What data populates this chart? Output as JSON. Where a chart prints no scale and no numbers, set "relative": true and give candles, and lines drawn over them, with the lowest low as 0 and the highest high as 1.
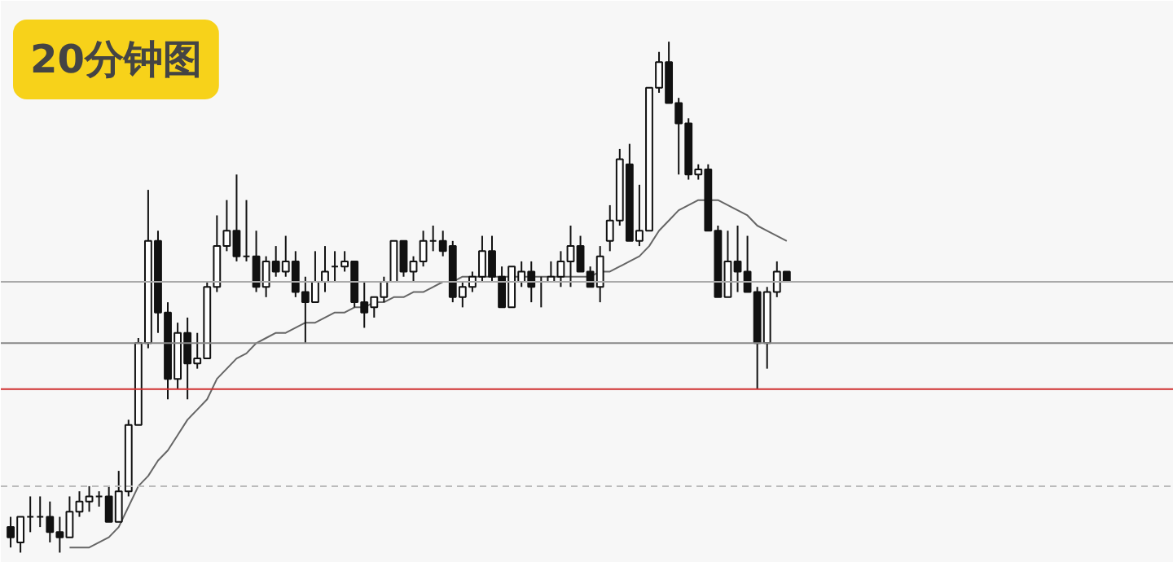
{
  "chart_data": {
    "type": "candlestick",
    "title": "20分钟图",
    "relative": true,
    "tick_labels": false,
    "grid": false,
    "categories": [
      null,
      null,
      null,
      null,
      null,
      null,
      null,
      null,
      null,
      null,
      null,
      null,
      null,
      null,
      null,
      null,
      null,
      null,
      null,
      null,
      null,
      null,
      null,
      null,
      null,
      null,
      null,
      null,
      null,
      null,
      null,
      null,
      null,
      null,
      null,
      null,
      null,
      null,
      null,
      null,
      null,
      null,
      null,
      null,
      null,
      null,
      null,
      null,
      null,
      null,
      null,
      null,
      null,
      null,
      null,
      null,
      null,
      null,
      null,
      null,
      null,
      null,
      null,
      null,
      null,
      null,
      null,
      null,
      null,
      null,
      null,
      null,
      null,
      null,
      null,
      null,
      null,
      null,
      null,
      null
    ],
    "ohlc": [
      [
        0.05,
        0.07,
        0.01,
        0.03
      ],
      [
        0.02,
        0.07,
        0,
        0.07
      ],
      [
        0.07,
        0.11,
        0.04,
        0.07
      ],
      [
        0.07,
        0.11,
        0.05,
        0.07
      ],
      [
        0.07,
        0.1,
        0.02,
        0.04
      ],
      [
        0.04,
        0.07,
        0,
        0.03
      ],
      [
        0.03,
        0.11,
        0.03,
        0.08
      ],
      [
        0.08,
        0.12,
        0.07,
        0.1
      ],
      [
        0.1,
        0.13,
        0.08,
        0.11
      ],
      [
        0.11,
        0.12,
        0.09,
        0.11
      ],
      [
        0.11,
        0.13,
        0.06,
        0.06
      ],
      [
        0.06,
        0.16,
        0.06,
        0.12
      ],
      [
        0.12,
        0.26,
        0.11,
        0.25
      ],
      [
        0.25,
        0.42,
        0.25,
        0.41
      ],
      [
        0.41,
        0.71,
        0.4,
        0.61
      ],
      [
        0.61,
        0.63,
        0.43,
        0.47
      ],
      [
        0.47,
        0.49,
        0.3,
        0.34
      ],
      [
        0.34,
        0.45,
        0.32,
        0.43
      ],
      [
        0.43,
        0.46,
        0.3,
        0.37
      ],
      [
        0.37,
        0.43,
        0.36,
        0.38
      ],
      [
        0.38,
        0.53,
        0.38,
        0.52
      ],
      [
        0.52,
        0.66,
        0.51,
        0.6
      ],
      [
        0.6,
        0.69,
        0.59,
        0.63
      ],
      [
        0.63,
        0.74,
        0.57,
        0.58
      ],
      [
        0.58,
        0.69,
        0.57,
        0.58
      ],
      [
        0.58,
        0.63,
        0.51,
        0.52
      ],
      [
        0.52,
        0.58,
        0.5,
        0.57
      ],
      [
        0.57,
        0.6,
        0.54,
        0.55
      ],
      [
        0.55,
        0.62,
        0.54,
        0.57
      ],
      [
        0.57,
        0.59,
        0.5,
        0.51
      ],
      [
        0.51,
        0.54,
        0.41,
        0.49
      ],
      [
        0.49,
        0.59,
        0.49,
        0.53
      ],
      [
        0.53,
        0.6,
        0.51,
        0.55
      ],
      [
        0.56,
        0.59,
        0.53,
        0.56
      ],
      [
        0.56,
        0.59,
        0.55,
        0.57
      ],
      [
        0.57,
        0.57,
        0.48,
        0.49
      ],
      [
        0.49,
        0.53,
        0.44,
        0.47
      ],
      [
        0.48,
        0.5,
        0.46,
        0.5
      ],
      [
        0.5,
        0.54,
        0.49,
        0.53
      ],
      [
        0.53,
        0.61,
        0.53,
        0.61
      ],
      [
        0.61,
        0.61,
        0.54,
        0.55
      ],
      [
        0.55,
        0.58,
        0.53,
        0.57
      ],
      [
        0.57,
        0.63,
        0.56,
        0.61
      ],
      [
        0.61,
        0.64,
        0.59,
        0.61
      ],
      [
        0.61,
        0.63,
        0.58,
        0.59
      ],
      [
        0.6,
        0.61,
        0.49,
        0.5
      ],
      [
        0.5,
        0.53,
        0.48,
        0.52
      ],
      [
        0.52,
        0.55,
        0.51,
        0.54
      ],
      [
        0.54,
        0.62,
        0.53,
        0.59
      ],
      [
        0.59,
        0.62,
        0.53,
        0.54
      ],
      [
        0.54,
        0.56,
        0.48,
        0.48
      ],
      [
        0.48,
        0.56,
        0.48,
        0.56
      ],
      [
        0.53,
        0.57,
        0.52,
        0.55
      ],
      [
        0.55,
        0.57,
        0.49,
        0.52
      ],
      [
        0.53,
        0.54,
        0.48,
        0.53
      ],
      [
        0.53,
        0.57,
        0.53,
        0.54
      ],
      [
        0.54,
        0.59,
        0.52,
        0.57
      ],
      [
        0.57,
        0.64,
        0.52,
        0.6
      ],
      [
        0.6,
        0.62,
        0.55,
        0.55
      ],
      [
        0.55,
        0.56,
        0.52,
        0.52
      ],
      [
        0.52,
        0.6,
        0.49,
        0.58
      ],
      [
        0.61,
        0.68,
        0.59,
        0.65
      ],
      [
        0.65,
        0.79,
        0.64,
        0.77
      ],
      [
        0.76,
        0.8,
        0.61,
        0.61
      ],
      [
        0.61,
        0.72,
        0.6,
        0.63
      ],
      [
        0.63,
        0.91,
        0.63,
        0.91
      ],
      [
        0.91,
        0.98,
        0.9,
        0.96
      ],
      [
        0.96,
        1,
        0.88,
        0.88
      ],
      [
        0.88,
        0.89,
        0.74,
        0.84
      ],
      [
        0.84,
        0.85,
        0.73,
        0.74
      ],
      [
        0.74,
        0.76,
        0.73,
        0.75
      ],
      [
        0.75,
        0.76,
        0.63,
        0.63
      ],
      [
        0.63,
        0.64,
        0.5,
        0.5
      ],
      [
        0.5,
        0.63,
        0.5,
        0.57
      ],
      [
        0.57,
        0.64,
        0.51,
        0.55
      ],
      [
        0.55,
        0.62,
        0.51,
        0.51
      ],
      [
        0.51,
        0.52,
        0.32,
        0.41
      ],
      [
        0.41,
        0.52,
        0.36,
        0.51
      ],
      [
        0.51,
        0.57,
        0.5,
        0.55
      ],
      [
        0.55,
        0.55,
        0.53,
        0.53
      ]
    ],
    "series": [
      {
        "type": "line",
        "color": "#666666",
        "values": [
          null,
          null,
          null,
          null,
          null,
          null,
          0.01,
          0.01,
          0.01,
          0.02,
          0.03,
          0.05,
          0.09,
          0.13,
          0.15,
          0.18,
          0.2,
          0.23,
          0.26,
          0.28,
          0.3,
          0.34,
          0.36,
          0.38,
          0.39,
          0.41,
          0.42,
          0.43,
          0.43,
          0.44,
          0.45,
          0.45,
          0.46,
          0.47,
          0.47,
          0.48,
          0.48,
          0.49,
          0.49,
          0.5,
          0.5,
          0.51,
          0.51,
          0.52,
          0.53,
          0.53,
          0.54,
          0.54,
          0.54,
          0.54,
          0.54,
          0.54,
          0.54,
          0.54,
          0.54,
          0.54,
          0.54,
          0.54,
          0.54,
          0.54,
          0.55,
          0.55,
          0.56,
          0.57,
          0.58,
          0.6,
          0.63,
          0.65,
          0.67,
          0.68,
          0.69,
          0.69,
          0.69,
          0.68,
          0.67,
          0.66,
          0.64,
          0.63,
          0.62,
          0.61
        ]
      }
    ],
    "ref_lines": [
      {
        "axis": "y",
        "value": 0.53,
        "color": "#aaaaaa"
      },
      {
        "axis": "y",
        "value": 0.41,
        "color": "#888888"
      },
      {
        "axis": "y",
        "value": 0.13,
        "color": "#bbbbbb",
        "line_style": "dashed"
      },
      {
        "axis": "y",
        "value": 0.32,
        "color": "#d03030"
      }
    ]
  }
}
